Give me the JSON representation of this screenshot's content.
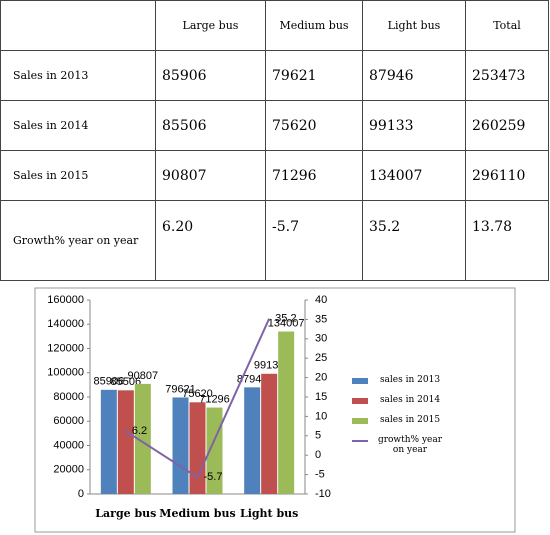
{
  "table": {
    "columns": [
      "Large bus",
      "Medium bus",
      "Light bus",
      "Total"
    ],
    "rows": [
      {
        "label": "Sales in 2013",
        "cells": [
          "85906",
          "79621",
          "87946",
          "253473"
        ]
      },
      {
        "label": "Sales in 2014",
        "cells": [
          "85506",
          "75620",
          "99133",
          "260259"
        ]
      },
      {
        "label": "Sales in 2015",
        "cells": [
          "90807",
          "71296",
          "134007",
          "296110"
        ]
      },
      {
        "label": "Growth% year on year",
        "cells": [
          "6.20",
          "-5.7",
          "35.2",
          "13.78"
        ]
      }
    ]
  },
  "chart_data": {
    "type": "bar",
    "categories": [
      "Large bus",
      "Medium bus",
      "Light bus"
    ],
    "series": [
      {
        "name": "sales in 2013",
        "color": "#4f81bd",
        "values": [
          85906,
          79621,
          87946
        ]
      },
      {
        "name": "sales in 2014",
        "color": "#c0504d",
        "values": [
          85506,
          75620,
          99133
        ]
      },
      {
        "name": "sales in 2015",
        "color": "#9bbb59",
        "values": [
          90807,
          71296,
          134007
        ]
      },
      {
        "name": "growth% year on year",
        "color": "#7f62a8",
        "values": [
          6.2,
          -5.7,
          35.2
        ],
        "axis": "y2",
        "type": "line"
      }
    ],
    "ylim": [
      0,
      160000
    ],
    "yticks": [
      0,
      20000,
      40000,
      60000,
      80000,
      100000,
      120000,
      140000,
      160000
    ],
    "y2lim": [
      -10,
      40
    ],
    "y2ticks": [
      -10,
      -5,
      0,
      5,
      10,
      15,
      20,
      25,
      30,
      35,
      40
    ],
    "legend": "right"
  }
}
